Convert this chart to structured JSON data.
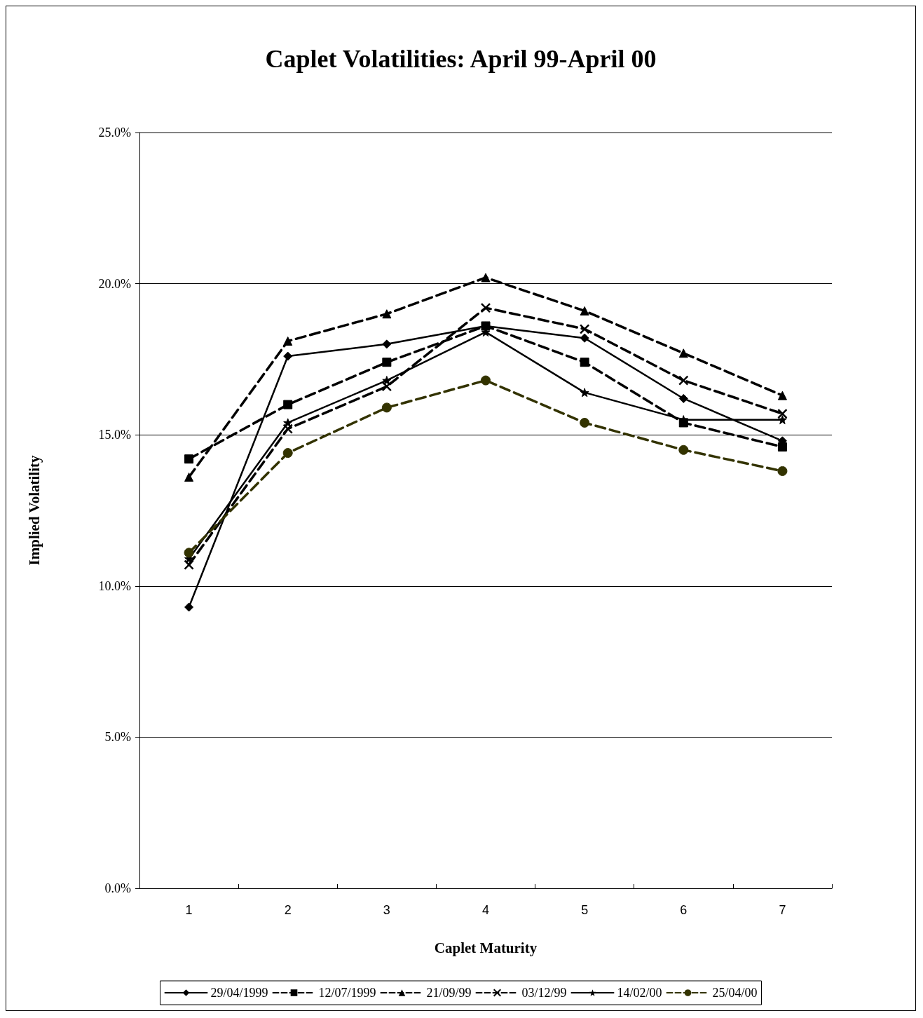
{
  "chart_data": {
    "type": "line",
    "title": "Caplet Volatilities: April 99-April 00",
    "xlabel": "Caplet Maturity",
    "ylabel": "Implied Volatility",
    "categories": [
      "1",
      "2",
      "3",
      "4",
      "5",
      "6",
      "7"
    ],
    "ylim": [
      0,
      25
    ],
    "yticks": [
      {
        "value": 0,
        "label": "0.0%"
      },
      {
        "value": 5,
        "label": "5.0%"
      },
      {
        "value": 10,
        "label": "10.0%"
      },
      {
        "value": 15,
        "label": "15.0%"
      },
      {
        "value": 20,
        "label": "20.0%"
      },
      {
        "value": 25,
        "label": "25.0%"
      }
    ],
    "grid": "y",
    "legend": "bottom",
    "series": [
      {
        "name": "29/04/1999",
        "color": "#000000",
        "marker": "diamond",
        "line_style": "solid",
        "values": [
          9.3,
          17.6,
          18.0,
          18.6,
          18.2,
          16.2,
          14.8
        ]
      },
      {
        "name": "12/07/1999",
        "color": "#000000",
        "marker": "square",
        "line_style": "dashed",
        "values": [
          14.2,
          16.0,
          17.4,
          18.6,
          17.4,
          15.4,
          14.6
        ]
      },
      {
        "name": "21/09/99",
        "color": "#000000",
        "marker": "triangle",
        "line_style": "dashed",
        "values": [
          13.6,
          18.1,
          19.0,
          20.2,
          19.1,
          17.7,
          16.3
        ]
      },
      {
        "name": "03/12/99",
        "color": "#000000",
        "marker": "cross",
        "line_style": "dashed",
        "values": [
          10.7,
          15.2,
          16.6,
          19.2,
          18.5,
          16.8,
          15.7
        ]
      },
      {
        "name": "14/02/00",
        "color": "#000000",
        "marker": "star",
        "line_style": "solid",
        "values": [
          10.9,
          15.4,
          16.8,
          18.4,
          16.4,
          15.5,
          15.5
        ]
      },
      {
        "name": "25/04/00",
        "color": "#333300",
        "marker": "circle",
        "line_style": "dashed",
        "values": [
          11.1,
          14.4,
          15.9,
          16.8,
          15.4,
          14.5,
          13.8
        ]
      }
    ]
  }
}
